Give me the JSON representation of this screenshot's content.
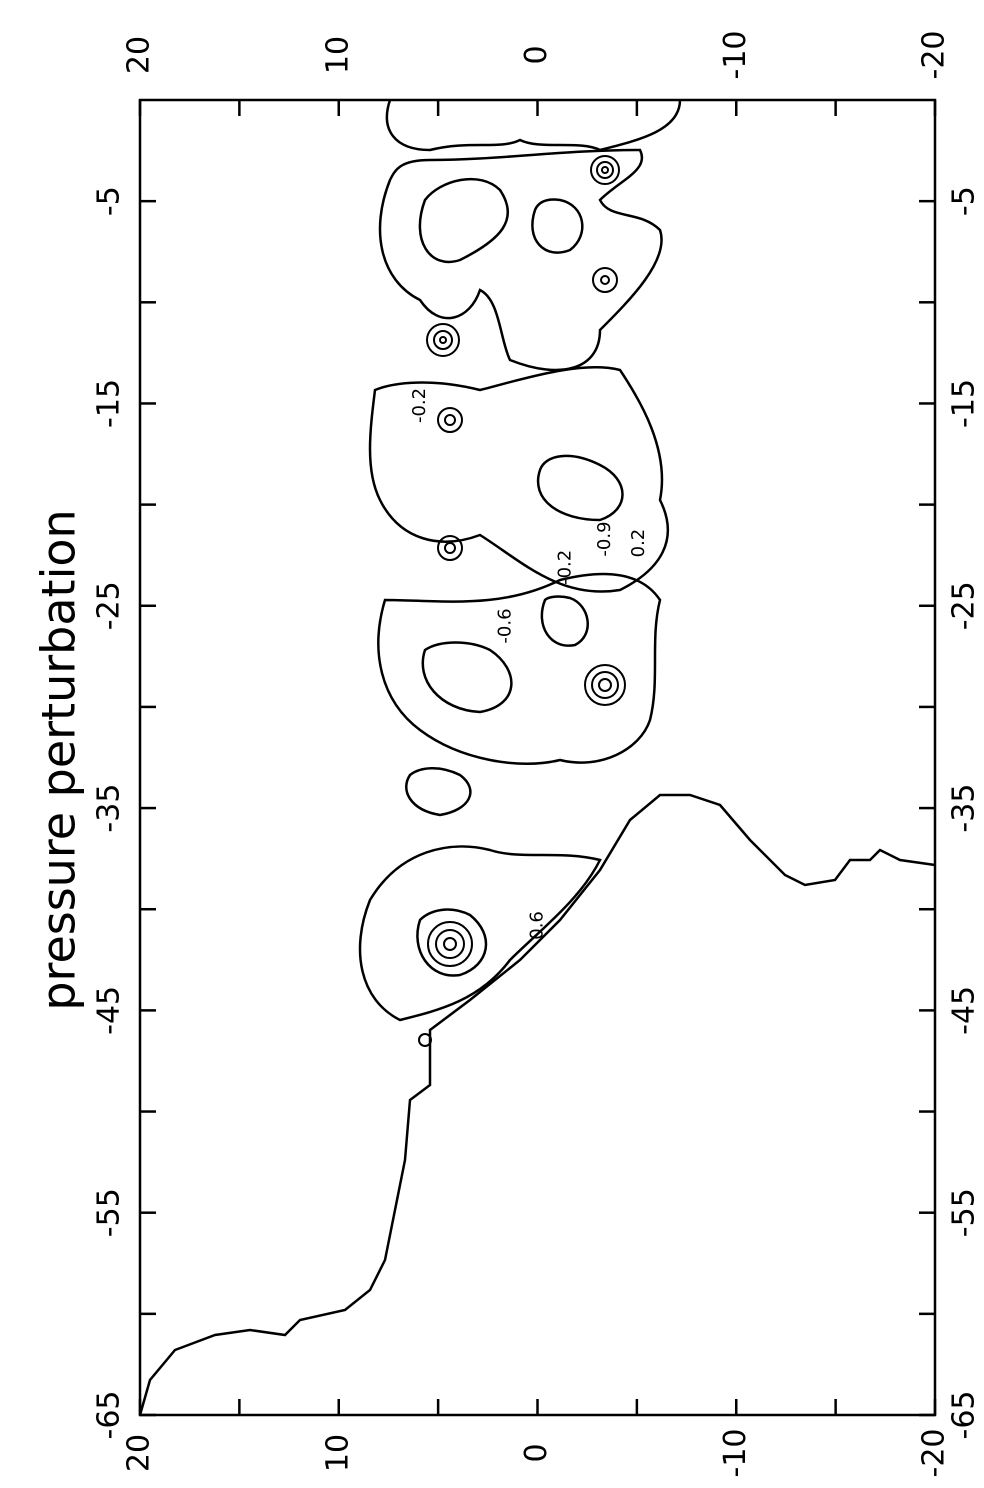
{
  "chart_data": {
    "type": "contour",
    "title": "pressure perturbation",
    "xlim": [
      -65,
      0
    ],
    "xticks": [
      -65,
      -55,
      -45,
      -35,
      -25,
      -15,
      -5
    ],
    "xminorticks": [
      -60,
      -50,
      -40,
      -30,
      -20,
      -10
    ],
    "ylim": [
      -20,
      20
    ],
    "yticks": [
      20,
      10,
      0,
      -10,
      -20
    ],
    "yminorticks": [
      15,
      5,
      -5,
      -15
    ],
    "color": "#000000",
    "annotations": [
      {
        "text": "-0.2",
        "x": -15.1,
        "y": 5.9
      },
      {
        "text": "-0.9",
        "x": -21.7,
        "y": -3.4
      },
      {
        "text": "0.2",
        "x": -21.9,
        "y": -5.1
      },
      {
        "text": "-0.2",
        "x": -23.1,
        "y": -1.4
      },
      {
        "text": "-0.6",
        "x": -26.0,
        "y": 1.6
      },
      {
        "text": "0.6",
        "x": -40.8,
        "y": 0.0
      }
    ]
  }
}
